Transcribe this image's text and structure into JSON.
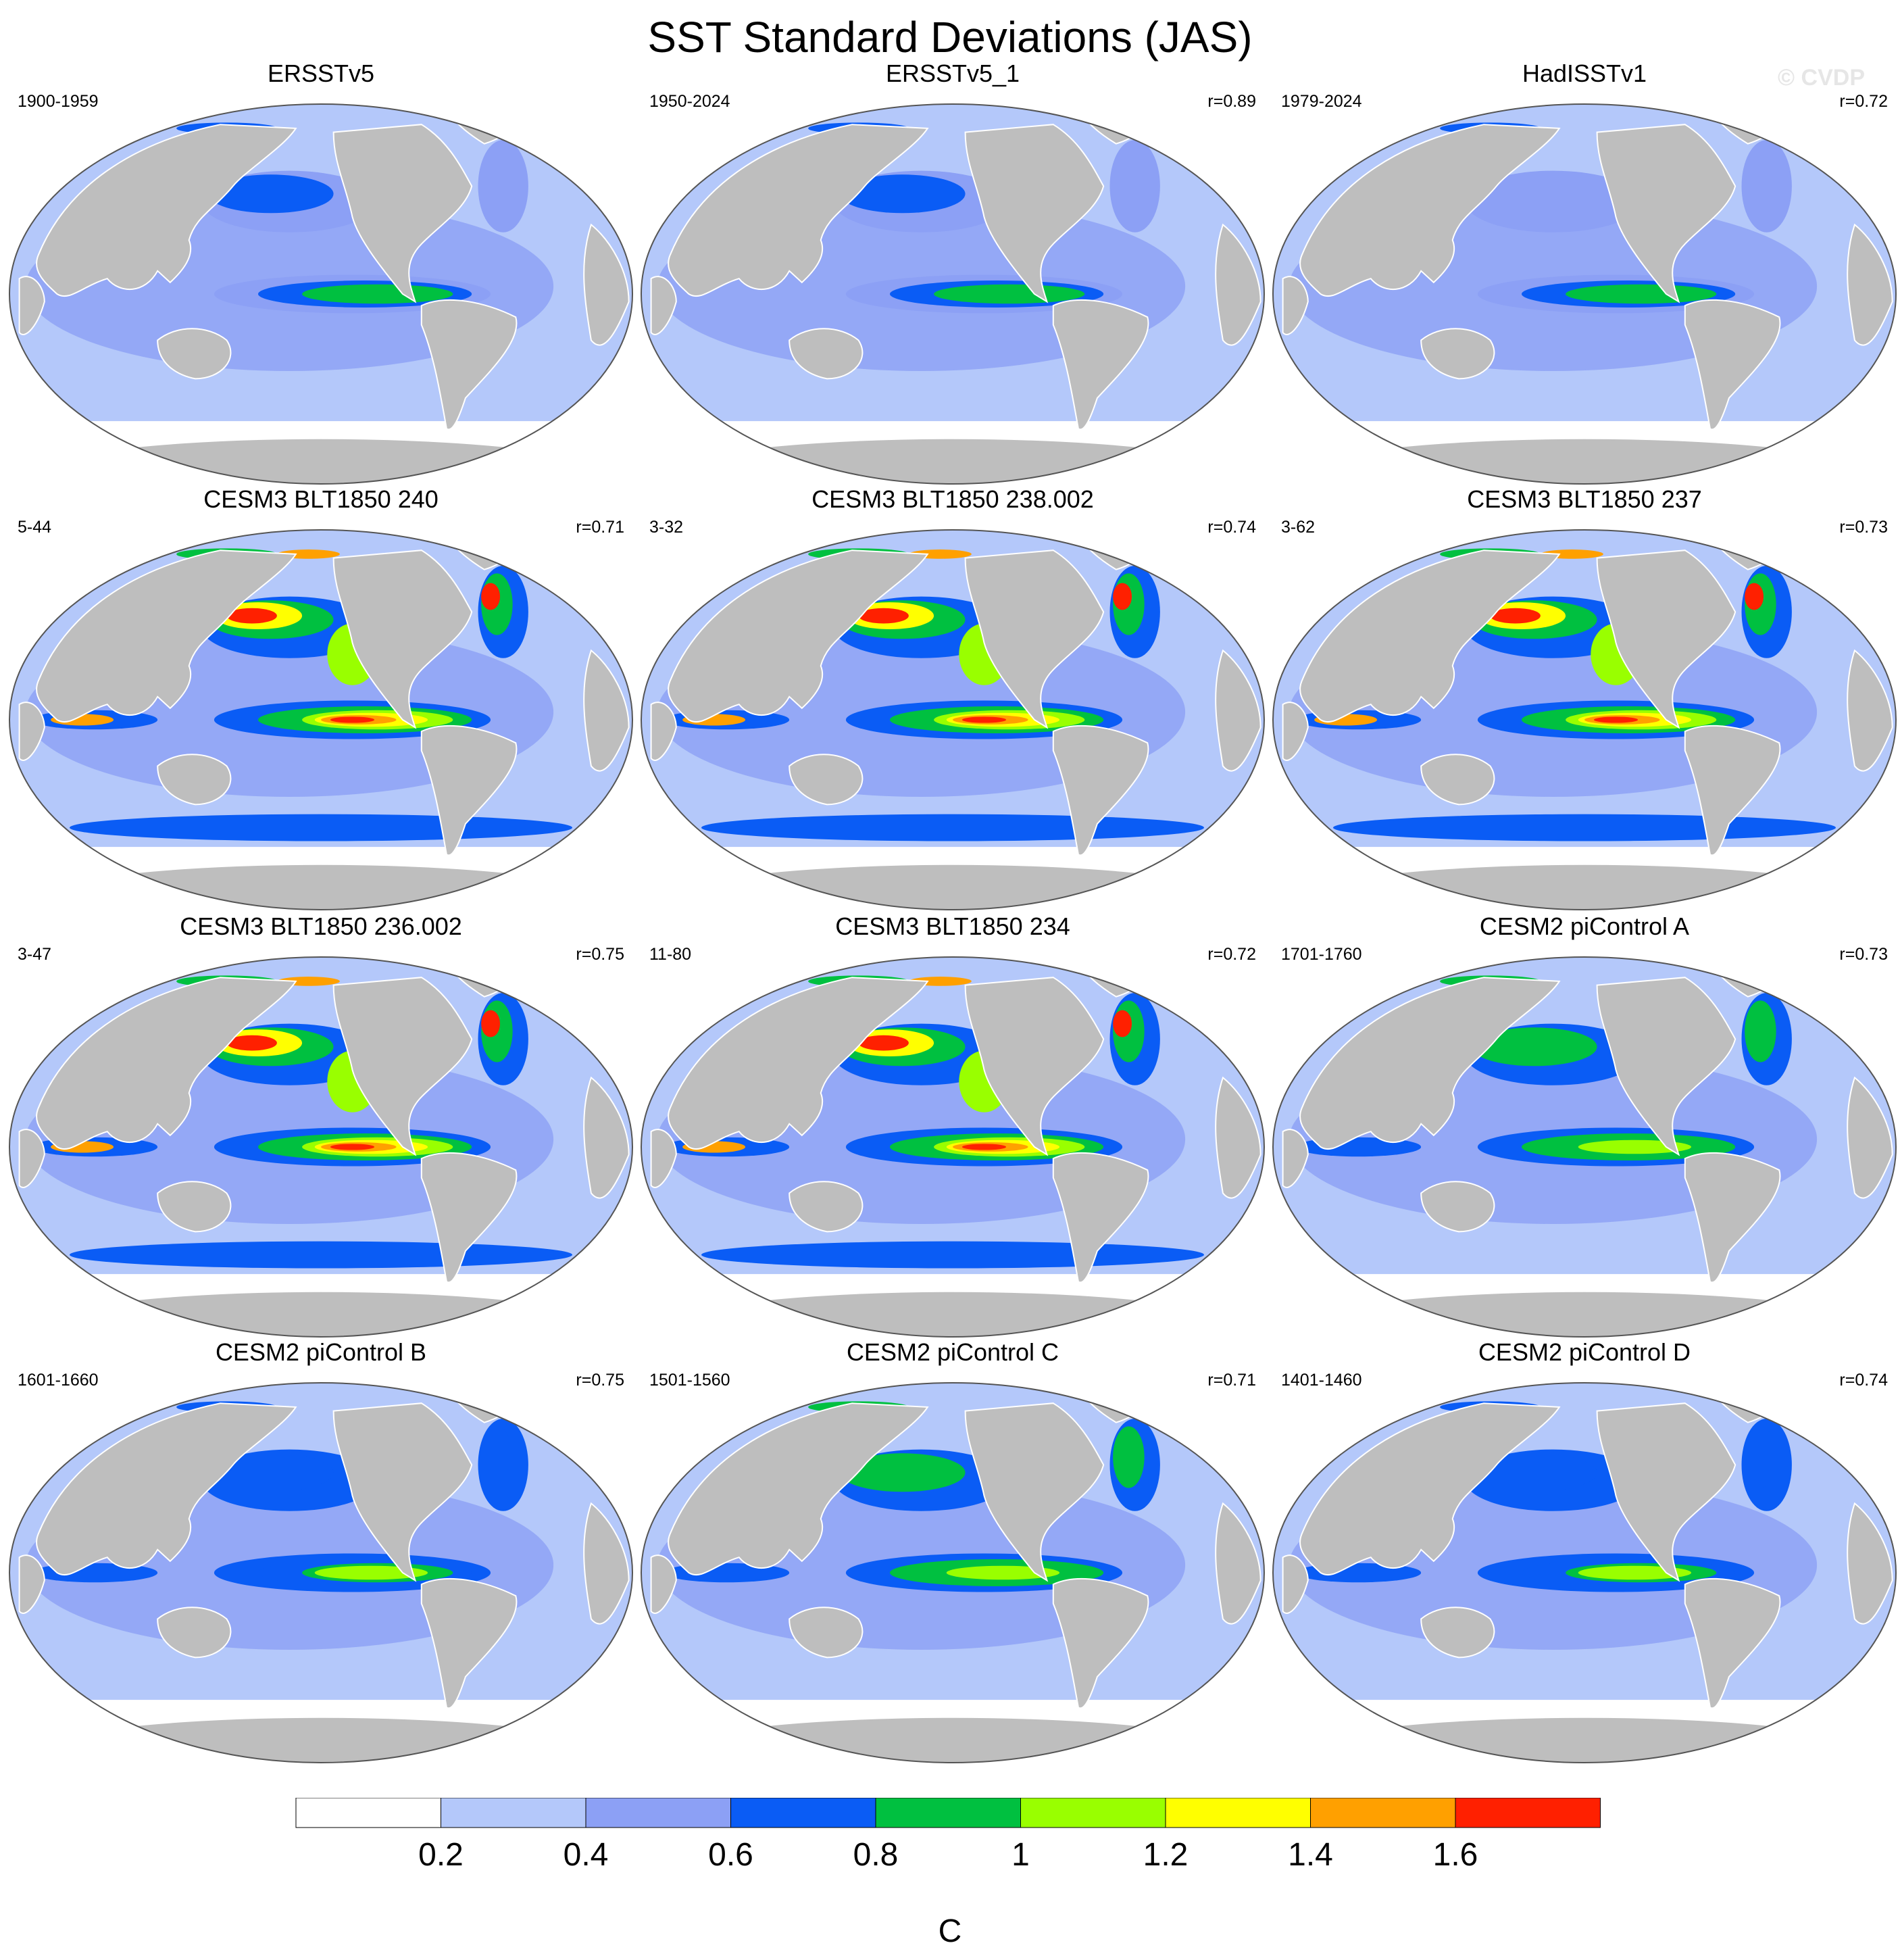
{
  "title": "SST Standard Deviations (JAS)",
  "watermark": "© CVDP",
  "panels": [
    {
      "title": "ERSSTv5",
      "period": "1900-1959",
      "r": ""
    },
    {
      "title": "ERSSTv5_1",
      "period": "1950-2024",
      "r": "r=0.89"
    },
    {
      "title": "HadISSTv1",
      "period": "1979-2024",
      "r": "r=0.72"
    },
    {
      "title": "CESM3 BLT1850 240",
      "period": "5-44",
      "r": "r=0.71"
    },
    {
      "title": "CESM3 BLT1850 238.002",
      "period": "3-32",
      "r": "r=0.74"
    },
    {
      "title": "CESM3 BLT1850 237",
      "period": "3-62",
      "r": "r=0.73"
    },
    {
      "title": "CESM3 BLT1850 236.002",
      "period": "3-47",
      "r": "r=0.75"
    },
    {
      "title": "CESM3 BLT1850 234",
      "period": "11-80",
      "r": "r=0.72"
    },
    {
      "title": "CESM2 piControl A",
      "period": "1701-1760",
      "r": "r=0.73"
    },
    {
      "title": "CESM2 piControl B",
      "period": "1601-1660",
      "r": "r=0.75"
    },
    {
      "title": "CESM2 piControl C",
      "period": "1501-1560",
      "r": "r=0.71"
    },
    {
      "title": "CESM2 piControl D",
      "period": "1401-1460",
      "r": "r=0.74"
    }
  ],
  "panel_intensity": [
    0.55,
    0.5,
    0.45,
    1.0,
    0.9,
    1.0,
    1.0,
    1.0,
    0.75,
    0.65,
    0.75,
    0.65
  ],
  "colorbar": {
    "unit": "C",
    "colors": [
      "#ffffff",
      "#b4c8fa",
      "#8ca0f5",
      "#0a5cf5",
      "#00c040",
      "#99ff00",
      "#ffff00",
      "#ffa000",
      "#ff2000"
    ],
    "tick_labels": [
      "0.2",
      "0.4",
      "0.6",
      "0.8",
      "1",
      "1.2",
      "1.4",
      "1.6"
    ]
  },
  "land_color": "#bebebe",
  "missing_color": "#ffffff"
}
